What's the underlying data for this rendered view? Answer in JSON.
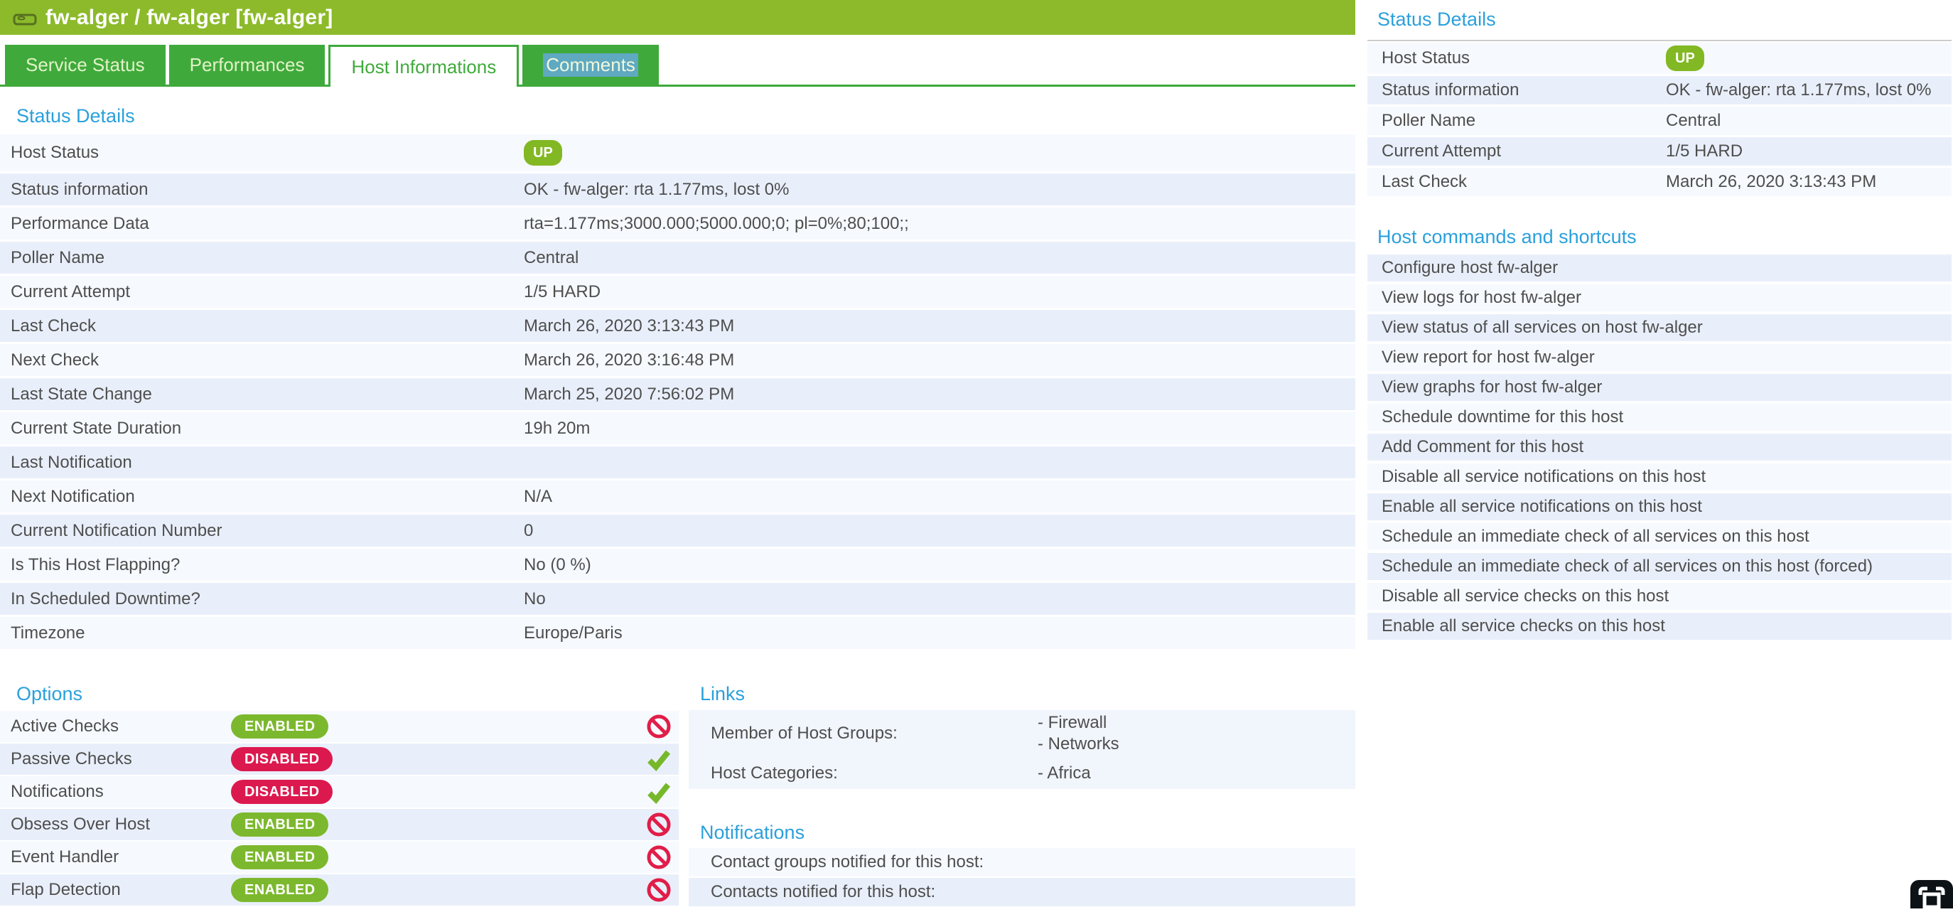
{
  "header": {
    "title": "fw-alger / fw-alger [fw-alger]"
  },
  "tabs": [
    {
      "label": "Service Status"
    },
    {
      "label": "Performances"
    },
    {
      "label": "Host Informations"
    },
    {
      "label": "Comments"
    }
  ],
  "status_details": {
    "heading": "Status Details",
    "rows": [
      {
        "label": "Host Status",
        "value": "UP",
        "type": "badge"
      },
      {
        "label": "Status information",
        "value": "OK - fw-alger: rta 1.177ms, lost 0%"
      },
      {
        "label": "Performance Data",
        "value": "rta=1.177ms;3000.000;5000.000;0; pl=0%;80;100;;"
      },
      {
        "label": "Poller Name",
        "value": "Central"
      },
      {
        "label": "Current Attempt",
        "value": "1/5 HARD"
      },
      {
        "label": "Last Check",
        "value": "March 26, 2020 3:13:43 PM"
      },
      {
        "label": "Next Check",
        "value": "March 26, 2020 3:16:48 PM"
      },
      {
        "label": "Last State Change",
        "value": "March 25, 2020 7:56:02 PM"
      },
      {
        "label": "Current State Duration",
        "value": "19h 20m"
      },
      {
        "label": "Last Notification",
        "value": ""
      },
      {
        "label": "Next Notification",
        "value": "N/A"
      },
      {
        "label": "Current Notification Number",
        "value": "0"
      },
      {
        "label": "Is This Host Flapping?",
        "value": "No (0 %)"
      },
      {
        "label": "In Scheduled Downtime?",
        "value": "No"
      },
      {
        "label": "Timezone",
        "value": "Europe/Paris"
      }
    ]
  },
  "options": {
    "heading": "Options",
    "rows": [
      {
        "label": "Active Checks",
        "state": "ENABLED",
        "state_color": "green",
        "action": "forbid"
      },
      {
        "label": "Passive Checks",
        "state": "DISABLED",
        "state_color": "red",
        "action": "check"
      },
      {
        "label": "Notifications",
        "state": "DISABLED",
        "state_color": "red",
        "action": "check"
      },
      {
        "label": "Obsess Over Host",
        "state": "ENABLED",
        "state_color": "green",
        "action": "forbid"
      },
      {
        "label": "Event Handler",
        "state": "ENABLED",
        "state_color": "green",
        "action": "forbid"
      },
      {
        "label": "Flap Detection",
        "state": "ENABLED",
        "state_color": "green",
        "action": "forbid"
      }
    ]
  },
  "links": {
    "heading": "Links",
    "rows": [
      {
        "label": "Member of Host Groups:",
        "values": [
          "- Firewall",
          "- Networks"
        ]
      },
      {
        "label": "Host Categories:",
        "values": [
          "- Africa"
        ]
      }
    ]
  },
  "notifications": {
    "heading": "Notifications",
    "rows": [
      {
        "label": "Contact groups notified for this host:"
      },
      {
        "label": "Contacts notified for this host:"
      }
    ]
  },
  "sidebar": {
    "status": {
      "heading": "Status Details",
      "rows": [
        {
          "label": "Host Status",
          "value": "UP",
          "type": "badge"
        },
        {
          "label": "Status information",
          "value": "OK - fw-alger: rta 1.177ms, lost 0%"
        },
        {
          "label": "Poller Name",
          "value": "Central"
        },
        {
          "label": "Current Attempt",
          "value": "1/5 HARD"
        },
        {
          "label": "Last Check",
          "value": "March 26, 2020 3:13:43 PM"
        }
      ]
    },
    "commands": {
      "heading": "Host commands and shortcuts",
      "items": [
        "Configure host fw-alger",
        "View logs for host fw-alger",
        "View status of all services on host fw-alger",
        "View report for host fw-alger",
        "View graphs for host fw-alger",
        "Schedule downtime for this host",
        "Add Comment for this host",
        "Disable all service notifications on this host",
        "Enable all service notifications on this host",
        "Schedule an immediate check of all services on this host",
        "Schedule an immediate check of all services on this host (forced)",
        "Disable all service checks on this host",
        "Enable all service checks on this host"
      ]
    }
  },
  "icons": {
    "host": "host-icon",
    "forbid": "forbid-icon",
    "check": "check-icon",
    "corner": "fit-screen-icon"
  },
  "colors": {
    "header_green": "#8CBA2B",
    "tab_green": "#3FAA3B",
    "heading_blue": "#2BA0DB",
    "row_light": "#F6F9FE",
    "row_dark": "#E9EFFA",
    "badge_green": "#82B823",
    "pill_green": "#7CB82E",
    "pill_red": "#DC194E",
    "check_green": "#76B82A",
    "forbid_red": "#E11D48",
    "selection_bg": "#5FA9C1",
    "selection_text": "#F0F8DC",
    "text_gray": "#4E4E4E"
  }
}
